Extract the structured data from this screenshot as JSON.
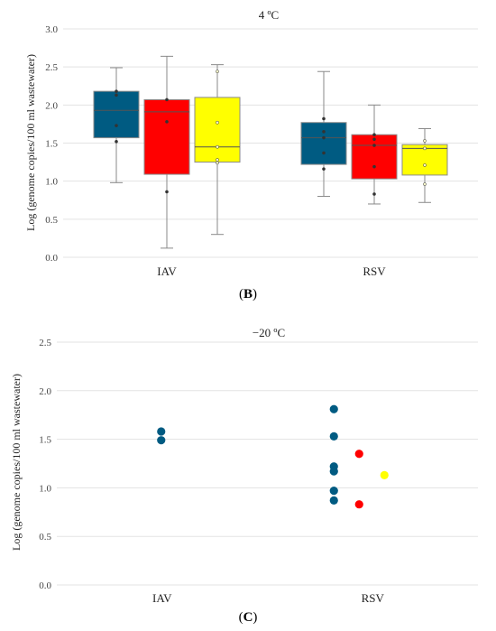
{
  "chart_data": [
    {
      "type": "box",
      "title": "4 ºC",
      "ylabel": "Log (genome copies/100 ml wastewater)",
      "ylim": [
        0,
        3.0
      ],
      "yticks": [
        "0.0",
        "0.5",
        "1.0",
        "1.5",
        "2.0",
        "2.5",
        "3.0"
      ],
      "categories": [
        "IAV",
        "RSV"
      ],
      "grid": true,
      "panel_label": "B",
      "boxes": [
        {
          "category": "IAV",
          "color": "#005b82",
          "min": 0.98,
          "q1": 1.57,
          "median": 1.93,
          "q3": 2.18,
          "max": 2.49,
          "points": [
            1.52,
            1.73,
            2.13,
            2.18
          ]
        },
        {
          "category": "IAV",
          "color": "#ff0000",
          "min": 0.12,
          "q1": 1.09,
          "median": 1.91,
          "q3": 2.07,
          "max": 2.64,
          "points": [
            0.86,
            1.78,
            2.07
          ]
        },
        {
          "category": "IAV",
          "color": "#ffff00",
          "min": 0.3,
          "q1": 1.25,
          "median": 1.45,
          "q3": 2.1,
          "max": 2.53,
          "points": [
            1.24,
            1.28,
            1.45,
            1.77,
            2.44
          ]
        },
        {
          "category": "RSV",
          "color": "#005b82",
          "min": 0.8,
          "q1": 1.22,
          "median": 1.57,
          "q3": 1.77,
          "max": 2.44,
          "points": [
            1.16,
            1.37,
            1.57,
            1.65,
            1.82
          ]
        },
        {
          "category": "RSV",
          "color": "#ff0000",
          "min": 0.7,
          "q1": 1.03,
          "median": 1.47,
          "q3": 1.61,
          "max": 2.0,
          "points": [
            0.83,
            1.19,
            1.47,
            1.55,
            1.61
          ]
        },
        {
          "category": "RSV",
          "color": "#ffff00",
          "min": 0.72,
          "q1": 1.08,
          "median": 1.43,
          "q3": 1.48,
          "max": 1.69,
          "points": [
            0.96,
            1.21,
            1.43,
            1.53
          ]
        }
      ]
    },
    {
      "type": "scatter",
      "title": "−20 ºC",
      "ylabel": "Log (genome copies/100 ml wastewater)",
      "ylim": [
        0,
        2.5
      ],
      "yticks": [
        "0.0",
        "0.5",
        "1.0",
        "1.5",
        "2.0",
        "2.5"
      ],
      "categories": [
        "IAV",
        "RSV"
      ],
      "grid": true,
      "panel_label": "C",
      "series": [
        {
          "color": "#005b82",
          "points": [
            {
              "category": "IAV",
              "offset": 0,
              "y": 1.58
            },
            {
              "category": "IAV",
              "offset": 0,
              "y": 1.49
            },
            {
              "category": "RSV",
              "offset": 0,
              "y": 1.81
            },
            {
              "category": "RSV",
              "offset": 0,
              "y": 1.53
            },
            {
              "category": "RSV",
              "offset": 0,
              "y": 1.22
            },
            {
              "category": "RSV",
              "offset": 0,
              "y": 1.17
            },
            {
              "category": "RSV",
              "offset": 0,
              "y": 0.97
            },
            {
              "category": "RSV",
              "offset": 0,
              "y": 0.87
            }
          ]
        },
        {
          "color": "#ff0000",
          "points": [
            {
              "category": "RSV",
              "offset": 1,
              "y": 1.35
            },
            {
              "category": "RSV",
              "offset": 1,
              "y": 0.83
            }
          ]
        },
        {
          "color": "#ffff00",
          "points": [
            {
              "category": "RSV",
              "offset": 2,
              "y": 1.13
            }
          ]
        }
      ]
    }
  ]
}
